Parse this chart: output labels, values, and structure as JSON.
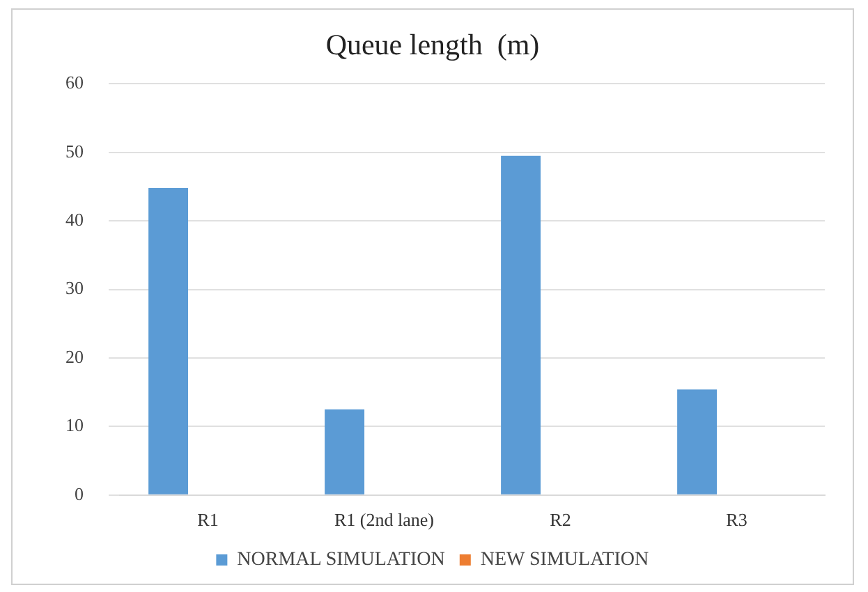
{
  "chart_data": {
    "type": "bar",
    "title": "Queue length  (m)",
    "categories": [
      "R1",
      "R1 (2nd lane)",
      "R2",
      "R3"
    ],
    "series": [
      {
        "name": "NORMAL SIMULATION",
        "color": "#5b9bd5",
        "values": [
          44.8,
          12.5,
          49.5,
          15.4
        ]
      },
      {
        "name": "NEW SIMULATION",
        "color": "#ed7d31",
        "values": [
          0,
          0,
          0,
          0
        ]
      }
    ],
    "ylim": [
      0,
      60
    ],
    "yticks": [
      0,
      10,
      20,
      30,
      40,
      50,
      60
    ],
    "grid": "y",
    "legend": "bottom"
  }
}
